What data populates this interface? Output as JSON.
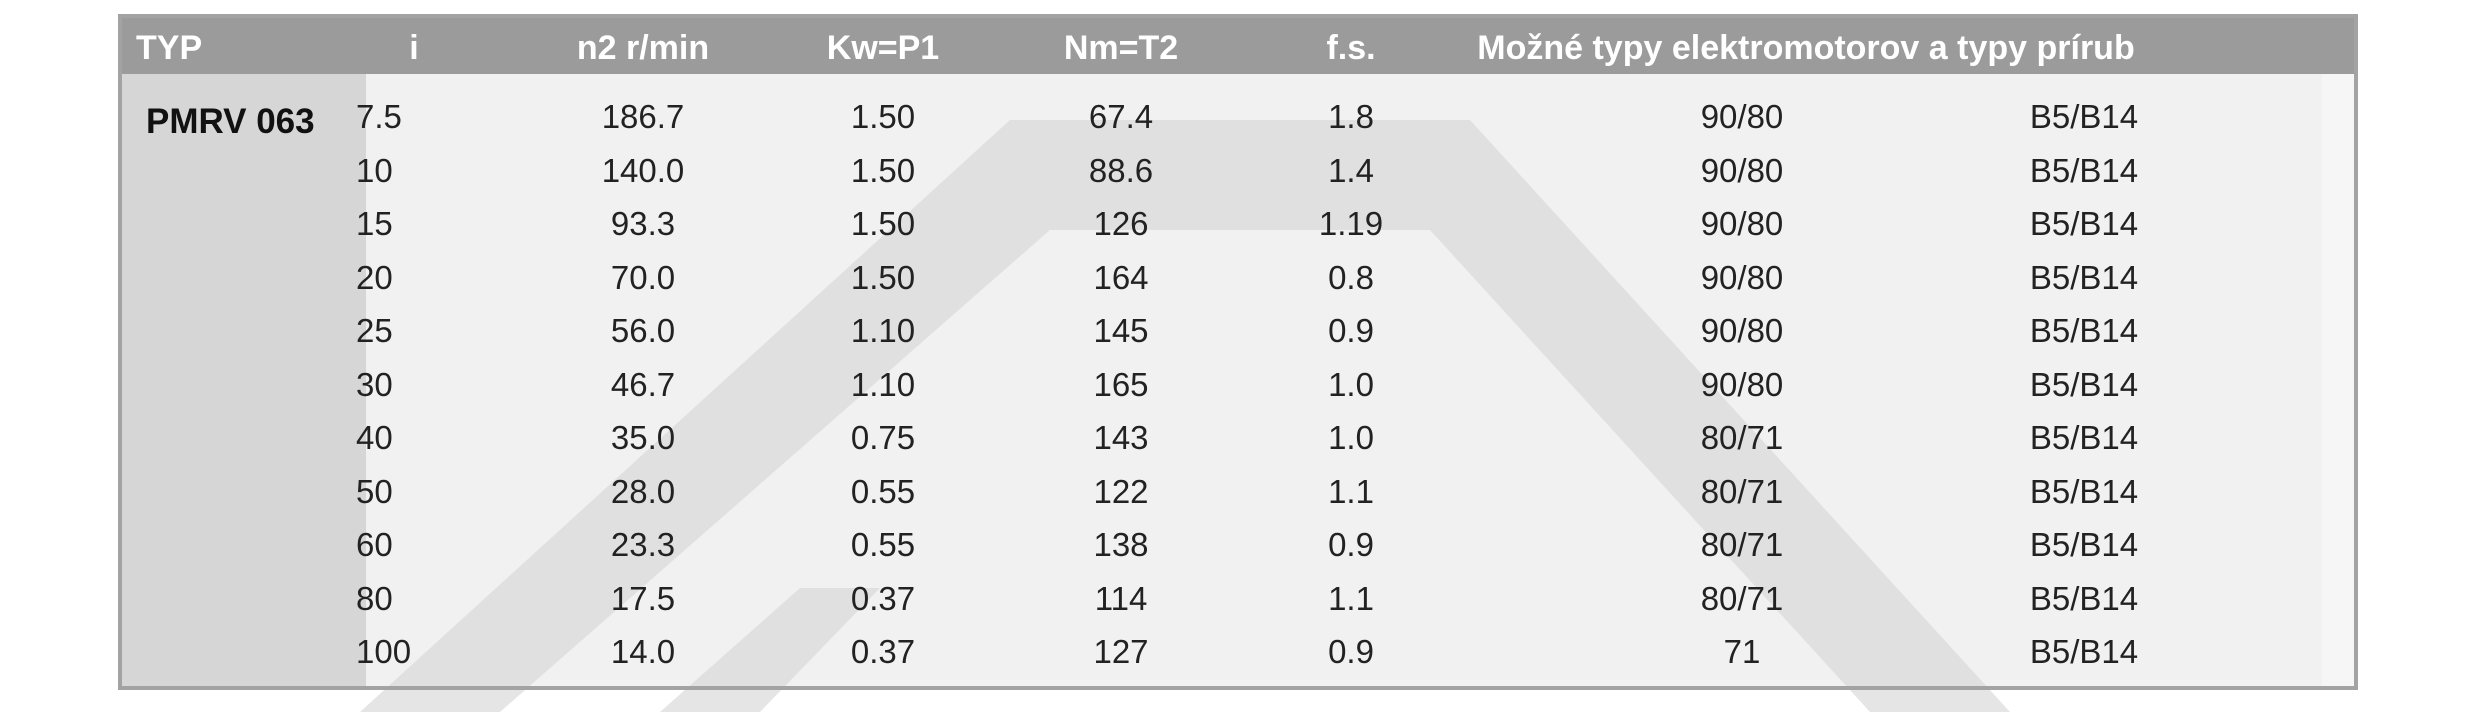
{
  "headers": {
    "typ": "TYP",
    "i": "i",
    "n2": "n2 r/min",
    "kw": "Kw=P1",
    "nm": "Nm=T2",
    "fs": "f.s.",
    "motors": "Možné typy elektromotorov a typy prírub"
  },
  "type_name": "PMRV 063",
  "rows": [
    {
      "i": "7.5",
      "n2": "186.7",
      "kw": "1.50",
      "nm": "67.4",
      "fs": "1.8",
      "motor": "90/80",
      "flange": "B5/B14"
    },
    {
      "i": "10",
      "n2": "140.0",
      "kw": "1.50",
      "nm": "88.6",
      "fs": "1.4",
      "motor": "90/80",
      "flange": "B5/B14"
    },
    {
      "i": "15",
      "n2": "93.3",
      "kw": "1.50",
      "nm": "126",
      "fs": "1.19",
      "motor": "90/80",
      "flange": "B5/B14"
    },
    {
      "i": "20",
      "n2": "70.0",
      "kw": "1.50",
      "nm": "164",
      "fs": "0.8",
      "motor": "90/80",
      "flange": "B5/B14"
    },
    {
      "i": "25",
      "n2": "56.0",
      "kw": "1.10",
      "nm": "145",
      "fs": "0.9",
      "motor": "90/80",
      "flange": "B5/B14"
    },
    {
      "i": "30",
      "n2": "46.7",
      "kw": "1.10",
      "nm": "165",
      "fs": "1.0",
      "motor": "90/80",
      "flange": "B5/B14"
    },
    {
      "i": "40",
      "n2": "35.0",
      "kw": "0.75",
      "nm": "143",
      "fs": "1.0",
      "motor": "80/71",
      "flange": "B5/B14"
    },
    {
      "i": "50",
      "n2": "28.0",
      "kw": "0.55",
      "nm": "122",
      "fs": "1.1",
      "motor": "80/71",
      "flange": "B5/B14"
    },
    {
      "i": "60",
      "n2": "23.3",
      "kw": "0.55",
      "nm": "138",
      "fs": "0.9",
      "motor": "80/71",
      "flange": "B5/B14"
    },
    {
      "i": "80",
      "n2": "17.5",
      "kw": "0.37",
      "nm": "114",
      "fs": "1.1",
      "motor": "80/71",
      "flange": "B5/B14"
    },
    {
      "i": "100",
      "n2": "14.0",
      "kw": "0.37",
      "nm": "127",
      "fs": "0.9",
      "motor": "71",
      "flange": "B5/B14"
    }
  ],
  "colors": {
    "header_bg": "#9b9b9b",
    "header_text": "#ffffff",
    "border": "#a3a3a3",
    "watermark": "#dcdcdc"
  }
}
